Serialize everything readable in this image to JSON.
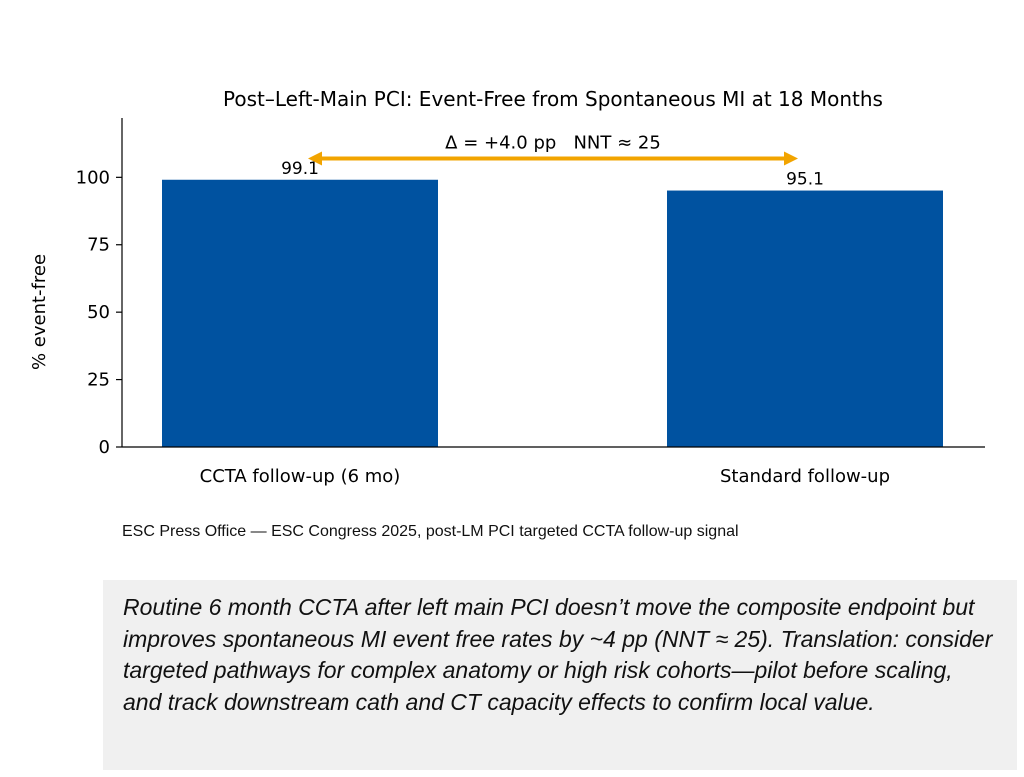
{
  "chart_data": {
    "type": "bar",
    "title": "Post–Left-Main PCI: Event-Free from Spontaneous MI at 18 Months",
    "xlabel": "",
    "ylabel": "% event-free",
    "categories": [
      "CCTA follow-up (6 mo)",
      "Standard follow-up"
    ],
    "values": [
      99.1,
      95.1
    ],
    "value_labels": [
      "99.1",
      "95.1"
    ],
    "ylim": [
      0,
      122
    ],
    "yticks": [
      0,
      25,
      50,
      75,
      100
    ],
    "ytick_labels": [
      "0",
      "25",
      "50",
      "75",
      "100"
    ],
    "grid": false,
    "bar_color": "#0052a0",
    "annotation": {
      "text": "Δ = +4.0 pp   NNT ≈ 25",
      "arrow_y": 107,
      "arrow_color": "#f2a400"
    }
  },
  "source": "ESC Press Office — ESC Congress 2025, post-LM PCI targeted CCTA follow-up signal",
  "note": "Routine 6 month CCTA after left main PCI doesn’t move the composite endpoint but improves spontaneous MI event free rates by ~4 pp (NNT ≈ 25). Translation: consider targeted pathways for complex anatomy or high risk cohorts—pilot before scaling, and track downstream cath and CT capacity effects to confirm local value."
}
